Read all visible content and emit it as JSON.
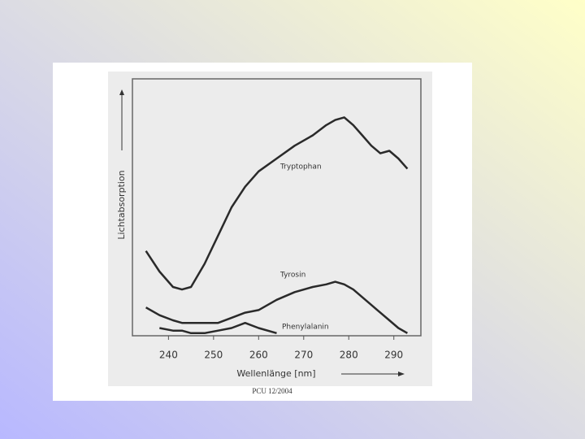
{
  "chart_data": {
    "type": "line",
    "x": [
      235,
      238,
      241,
      243,
      245,
      248,
      251,
      254,
      257,
      260,
      264,
      268,
      272,
      275,
      277,
      279,
      281,
      283,
      285,
      287,
      289,
      291,
      293
    ],
    "xlim": [
      232,
      296
    ],
    "xticks": [
      240,
      250,
      260,
      270,
      280,
      290
    ],
    "ylim": [
      0,
      1
    ],
    "x_label": "Wellenlänge [nm]",
    "y_label": "Lichtabsorption",
    "source": "PCU 12/2004",
    "series": [
      {
        "name": "Tryptophan",
        "color": "#2a2a2a",
        "values": [
          0.33,
          0.25,
          0.19,
          0.18,
          0.19,
          0.28,
          0.39,
          0.5,
          0.58,
          0.64,
          0.69,
          0.74,
          0.78,
          0.82,
          0.84,
          0.85,
          0.82,
          0.78,
          0.74,
          0.71,
          0.72,
          0.69,
          0.65
        ]
      },
      {
        "name": "Tyrosin",
        "color": "#2a2a2a",
        "values": [
          0.11,
          0.08,
          0.06,
          0.05,
          0.05,
          0.05,
          0.05,
          0.07,
          0.09,
          0.1,
          0.14,
          0.17,
          0.19,
          0.2,
          0.21,
          0.2,
          0.18,
          0.15,
          0.12,
          0.09,
          0.06,
          0.03,
          0.01
        ]
      },
      {
        "name": "Phenylalanin",
        "color": "#2a2a2a",
        "values": [
          null,
          0.03,
          0.02,
          0.02,
          0.01,
          0.01,
          0.02,
          0.03,
          0.05,
          0.03,
          0.01,
          null,
          null,
          null,
          null,
          null,
          null,
          null,
          null,
          null,
          null,
          null,
          null
        ]
      }
    ]
  }
}
